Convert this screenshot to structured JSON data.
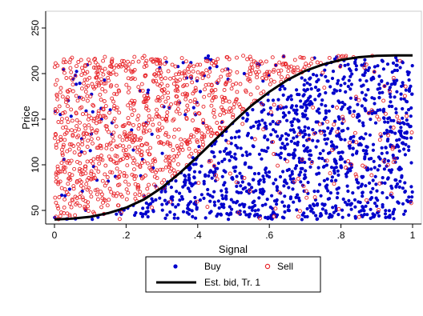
{
  "chart_data": {
    "type": "scatter",
    "title": "",
    "xlabel": "Signal",
    "ylabel": "Price",
    "xlim": [
      0,
      1
    ],
    "ylim": [
      40,
      260
    ],
    "x_ticks": [
      {
        "value": 0,
        "label": "0"
      },
      {
        "value": 0.2,
        "label": ".2"
      },
      {
        "value": 0.4,
        "label": ".4"
      },
      {
        "value": 0.6,
        "label": ".6"
      },
      {
        "value": 0.8,
        "label": ".8"
      },
      {
        "value": 1,
        "label": "1"
      }
    ],
    "y_ticks": [
      {
        "value": 50,
        "label": "50"
      },
      {
        "value": 100,
        "label": "100"
      },
      {
        "value": 150,
        "label": "150"
      },
      {
        "value": 200,
        "label": "200"
      },
      {
        "value": 250,
        "label": "250"
      }
    ],
    "grid": false,
    "legend_position": "bottom",
    "colors": {
      "buy": "#0000cc",
      "sell": "#e8262b",
      "bid": "#000000"
    },
    "price_range_of_points": [
      40,
      220
    ],
    "series": [
      {
        "name": "Buy",
        "kind": "scatter",
        "marker": "filled-circle",
        "description_of_pattern": "dense points across all prices, mostly at signals right of the bid curve"
      },
      {
        "name": "Sell",
        "kind": "scatter",
        "marker": "hollow-circle",
        "description_of_pattern": "dense points across all prices, mostly at signals left of the bid curve"
      },
      {
        "name": "Est. bid, Tr. 1",
        "kind": "line",
        "points": [
          {
            "x": 0.0,
            "y": 40
          },
          {
            "x": 0.05,
            "y": 41
          },
          {
            "x": 0.1,
            "y": 43
          },
          {
            "x": 0.15,
            "y": 47
          },
          {
            "x": 0.2,
            "y": 53
          },
          {
            "x": 0.25,
            "y": 62
          },
          {
            "x": 0.3,
            "y": 75
          },
          {
            "x": 0.35,
            "y": 91
          },
          {
            "x": 0.4,
            "y": 109
          },
          {
            "x": 0.45,
            "y": 128
          },
          {
            "x": 0.5,
            "y": 147
          },
          {
            "x": 0.55,
            "y": 165
          },
          {
            "x": 0.6,
            "y": 180
          },
          {
            "x": 0.65,
            "y": 193
          },
          {
            "x": 0.7,
            "y": 203
          },
          {
            "x": 0.75,
            "y": 210
          },
          {
            "x": 0.8,
            "y": 215
          },
          {
            "x": 0.85,
            "y": 218
          },
          {
            "x": 0.9,
            "y": 219.5
          },
          {
            "x": 0.95,
            "y": 220
          },
          {
            "x": 1.0,
            "y": 220
          }
        ]
      }
    ]
  },
  "legend": {
    "buy_label": "Buy",
    "sell_label": "Sell",
    "bid_label": "Est. bid, Tr. 1"
  }
}
